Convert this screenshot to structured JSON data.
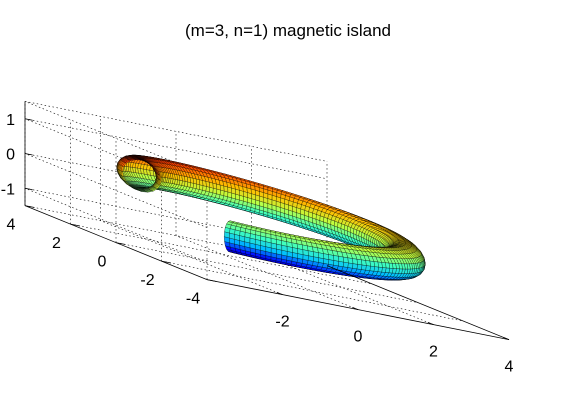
{
  "chart_data": {
    "type": "surface3d",
    "title": "(m=3, n=1) magnetic island",
    "xlabel": "",
    "ylabel": "",
    "zlabel": "",
    "xlim": [
      -4,
      4
    ],
    "ylim": [
      -4,
      4
    ],
    "zlim": [
      -1.5,
      1.5
    ],
    "x_ticks": [
      "-2",
      "0",
      "2",
      "4"
    ],
    "y_ticks": [
      "4",
      "2",
      "0",
      "-2",
      "-4"
    ],
    "z_ticks": [
      "1",
      "0",
      "-1"
    ],
    "grid": true,
    "colormap": "jet",
    "colormap_stops": [
      "#000080",
      "#0000ff",
      "#00bfff",
      "#40ffbf",
      "#bfff40",
      "#ffbf00",
      "#ff4000",
      "#800000"
    ],
    "surface": {
      "major_radius": 2.6,
      "island_radius": 0.55,
      "tube_radius": 0.45,
      "m": 3,
      "n": 1,
      "toroidal_extent_deg": 300
    }
  }
}
